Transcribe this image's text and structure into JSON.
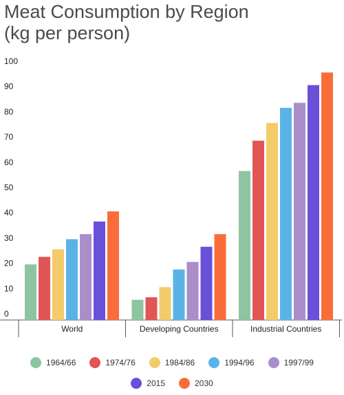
{
  "chart_data": {
    "type": "bar",
    "title_lines": [
      "Meat Consumption by Region",
      "(kg per person)"
    ],
    "categories": [
      "World",
      "Developing Countries",
      "Industrial Countries"
    ],
    "series": [
      {
        "name": "1964/66",
        "color": "#8ec4a0",
        "values": [
          22,
          8,
          59
        ]
      },
      {
        "name": "1974/76",
        "color": "#e05555",
        "values": [
          25,
          9,
          71
        ]
      },
      {
        "name": "1984/86",
        "color": "#f2cc6b",
        "values": [
          28,
          13,
          78
        ]
      },
      {
        "name": "1994/96",
        "color": "#5ab3e6",
        "values": [
          32,
          20,
          84
        ]
      },
      {
        "name": "1997/99",
        "color": "#a98ec9",
        "values": [
          34,
          23,
          86
        ]
      },
      {
        "name": "2015",
        "color": "#6a4fd9",
        "values": [
          39,
          29,
          93
        ]
      },
      {
        "name": "2030",
        "color": "#fa6d3a",
        "values": [
          43,
          34,
          98
        ]
      }
    ],
    "yticks": [
      0,
      10,
      20,
      30,
      40,
      50,
      60,
      70,
      80,
      90,
      100
    ],
    "ylim": [
      0,
      100
    ],
    "grid": false,
    "legend_position": "bottom"
  }
}
